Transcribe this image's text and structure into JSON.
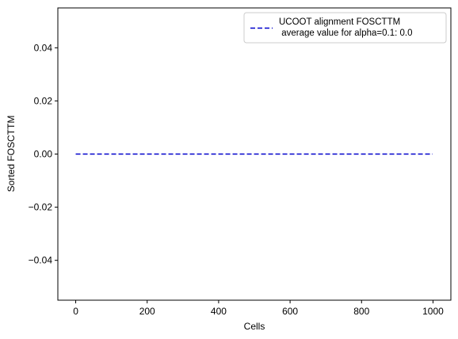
{
  "chart_data": {
    "type": "line",
    "title": "",
    "xlabel": "Cells",
    "ylabel": "Sorted FOSCTTM",
    "xlim": [
      -50,
      1050
    ],
    "ylim": [
      -0.055,
      0.055
    ],
    "xticks": [
      0,
      200,
      400,
      600,
      800,
      1000
    ],
    "xtick_labels": [
      "0",
      "200",
      "400",
      "600",
      "800",
      "1000"
    ],
    "yticks": [
      -0.04,
      -0.02,
      0.0,
      0.02,
      0.04
    ],
    "ytick_labels": [
      "−0.04",
      "−0.02",
      "0.00",
      "0.02",
      "0.04"
    ],
    "grid": false,
    "legend_position": "top-right",
    "series": [
      {
        "name": "UCOOT alignment FOSCTTM\n average value for alpha=0.1: 0.0",
        "legend_lines": [
          "UCOOT alignment FOSCTTM",
          " average value for alpha=0.1: 0.0"
        ],
        "color": "#0000cc",
        "line_style": "dashed",
        "x": [
          0,
          999
        ],
        "y": [
          0.0,
          0.0
        ]
      }
    ]
  }
}
